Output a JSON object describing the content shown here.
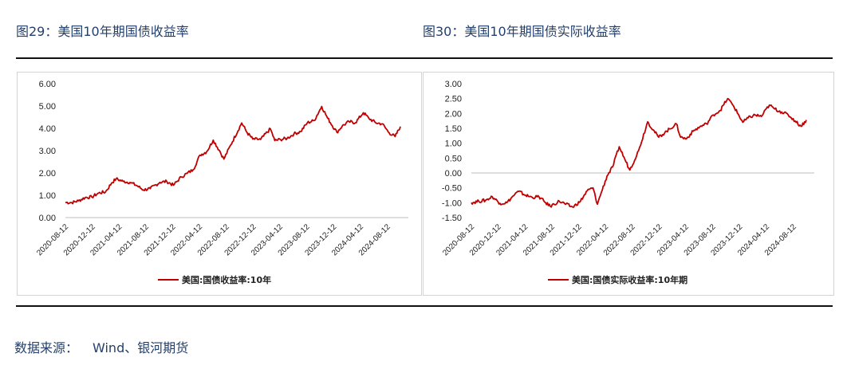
{
  "titles": {
    "left": "图29：美国10年期国债收益率",
    "right": "图30：美国10年期国债实际收益率"
  },
  "source": {
    "label": "数据来源：",
    "value": "Wind、银河期货"
  },
  "colors": {
    "series": "#c00000",
    "axis": "#bfbfbf",
    "tick_text": "#222222"
  },
  "chart_data": [
    {
      "type": "line",
      "title": "",
      "x_tick_labels": [
        "2020-08-12",
        "2020-12-12",
        "2021-04-12",
        "2021-08-12",
        "2021-12-12",
        "2022-04-12",
        "2022-08-12",
        "2022-12-12",
        "2023-04-12",
        "2023-08-12",
        "2023-12-12",
        "2024-04-12",
        "2024-08-12"
      ],
      "x_range": [
        "2020-08-12",
        "2024-10-10"
      ],
      "ylim": [
        0,
        6
      ],
      "y_ticks": [
        "0.00",
        "1.00",
        "2.00",
        "3.00",
        "4.00",
        "5.00",
        "6.00"
      ],
      "grid": false,
      "legend_position": "bottom-center",
      "series": [
        {
          "name": "美国:国债收益率:10年",
          "points": [
            [
              "2020-08-12",
              0.68
            ],
            [
              "2020-09-10",
              0.67
            ],
            [
              "2020-10-10",
              0.75
            ],
            [
              "2020-11-10",
              0.9
            ],
            [
              "2020-12-10",
              0.92
            ],
            [
              "2021-01-10",
              1.1
            ],
            [
              "2021-02-10",
              1.15
            ],
            [
              "2021-03-10",
              1.55
            ],
            [
              "2021-03-30",
              1.74
            ],
            [
              "2021-05-01",
              1.62
            ],
            [
              "2021-06-01",
              1.58
            ],
            [
              "2021-07-01",
              1.44
            ],
            [
              "2021-08-01",
              1.24
            ],
            [
              "2021-09-01",
              1.3
            ],
            [
              "2021-10-15",
              1.58
            ],
            [
              "2021-11-15",
              1.62
            ],
            [
              "2021-12-15",
              1.45
            ],
            [
              "2022-01-20",
              1.82
            ],
            [
              "2022-02-15",
              1.98
            ],
            [
              "2022-03-15",
              2.15
            ],
            [
              "2022-04-15",
              2.8
            ],
            [
              "2022-05-15",
              2.95
            ],
            [
              "2022-06-14",
              3.47
            ],
            [
              "2022-07-15",
              2.95
            ],
            [
              "2022-08-01",
              2.62
            ],
            [
              "2022-09-01",
              3.25
            ],
            [
              "2022-10-21",
              4.24
            ],
            [
              "2022-11-15",
              3.8
            ],
            [
              "2022-12-10",
              3.52
            ],
            [
              "2023-01-15",
              3.5
            ],
            [
              "2023-02-28",
              3.98
            ],
            [
              "2023-03-20",
              3.45
            ],
            [
              "2023-04-15",
              3.5
            ],
            [
              "2023-05-15",
              3.55
            ],
            [
              "2023-06-15",
              3.75
            ],
            [
              "2023-07-15",
              3.85
            ],
            [
              "2023-08-15",
              4.25
            ],
            [
              "2023-09-15",
              4.35
            ],
            [
              "2023-10-19",
              4.98
            ],
            [
              "2023-11-15",
              4.45
            ],
            [
              "2023-12-27",
              3.82
            ],
            [
              "2024-01-20",
              4.1
            ],
            [
              "2024-02-20",
              4.3
            ],
            [
              "2024-03-20",
              4.25
            ],
            [
              "2024-04-25",
              4.7
            ],
            [
              "2024-05-20",
              4.45
            ],
            [
              "2024-06-20",
              4.25
            ],
            [
              "2024-07-20",
              4.2
            ],
            [
              "2024-08-20",
              3.8
            ],
            [
              "2024-09-16",
              3.63
            ],
            [
              "2024-10-10",
              4.08
            ]
          ]
        }
      ]
    },
    {
      "type": "line",
      "title": "",
      "x_tick_labels": [
        "2020-08-12",
        "2020-12-12",
        "2021-04-12",
        "2021-08-12",
        "2021-12-12",
        "2022-04-12",
        "2022-08-12",
        "2022-12-12",
        "2023-04-12",
        "2023-08-12",
        "2023-12-12",
        "2024-04-12",
        "2024-08-12"
      ],
      "x_range": [
        "2020-08-12",
        "2024-10-10"
      ],
      "ylim": [
        -1.5,
        3
      ],
      "y_ticks": [
        "-1.50",
        "-1.00",
        "-0.50",
        "0.00",
        "0.50",
        "1.00",
        "1.50",
        "2.00",
        "2.50",
        "3.00"
      ],
      "grid": false,
      "legend_position": "bottom-center",
      "series": [
        {
          "name": "美国:国债实际收益率:10年期",
          "points": [
            [
              "2020-08-12",
              -1.0
            ],
            [
              "2020-09-15",
              -0.95
            ],
            [
              "2020-10-15",
              -0.92
            ],
            [
              "2020-11-15",
              -0.8
            ],
            [
              "2020-12-20",
              -1.02
            ],
            [
              "2021-01-20",
              -1.0
            ],
            [
              "2021-02-25",
              -0.72
            ],
            [
              "2021-03-15",
              -0.62
            ],
            [
              "2021-04-15",
              -0.75
            ],
            [
              "2021-05-15",
              -0.82
            ],
            [
              "2021-06-15",
              -0.8
            ],
            [
              "2021-07-15",
              -1.0
            ],
            [
              "2021-08-05",
              -1.12
            ],
            [
              "2021-09-15",
              -0.95
            ],
            [
              "2021-10-15",
              -1.05
            ],
            [
              "2021-11-15",
              -1.15
            ],
            [
              "2021-12-20",
              -0.95
            ],
            [
              "2022-01-20",
              -0.6
            ],
            [
              "2022-02-15",
              -0.5
            ],
            [
              "2022-03-07",
              -1.05
            ],
            [
              "2022-03-25",
              -0.65
            ],
            [
              "2022-04-20",
              -0.1
            ],
            [
              "2022-05-15",
              0.2
            ],
            [
              "2022-06-14",
              0.88
            ],
            [
              "2022-07-10",
              0.45
            ],
            [
              "2022-08-01",
              0.1
            ],
            [
              "2022-09-10",
              0.75
            ],
            [
              "2022-10-21",
              1.72
            ],
            [
              "2022-11-15",
              1.45
            ],
            [
              "2022-12-10",
              1.2
            ],
            [
              "2023-01-15",
              1.4
            ],
            [
              "2023-02-28",
              1.65
            ],
            [
              "2023-03-20",
              1.2
            ],
            [
              "2023-04-15",
              1.15
            ],
            [
              "2023-05-15",
              1.4
            ],
            [
              "2023-06-15",
              1.55
            ],
            [
              "2023-07-15",
              1.65
            ],
            [
              "2023-08-15",
              1.95
            ],
            [
              "2023-09-15",
              2.1
            ],
            [
              "2023-10-19",
              2.5
            ],
            [
              "2023-11-15",
              2.25
            ],
            [
              "2023-12-27",
              1.7
            ],
            [
              "2024-01-20",
              1.85
            ],
            [
              "2024-02-20",
              1.95
            ],
            [
              "2024-03-20",
              1.9
            ],
            [
              "2024-04-25",
              2.28
            ],
            [
              "2024-05-20",
              2.15
            ],
            [
              "2024-06-20",
              2.05
            ],
            [
              "2024-07-20",
              1.95
            ],
            [
              "2024-08-20",
              1.75
            ],
            [
              "2024-09-16",
              1.57
            ],
            [
              "2024-10-10",
              1.78
            ]
          ]
        }
      ]
    }
  ]
}
